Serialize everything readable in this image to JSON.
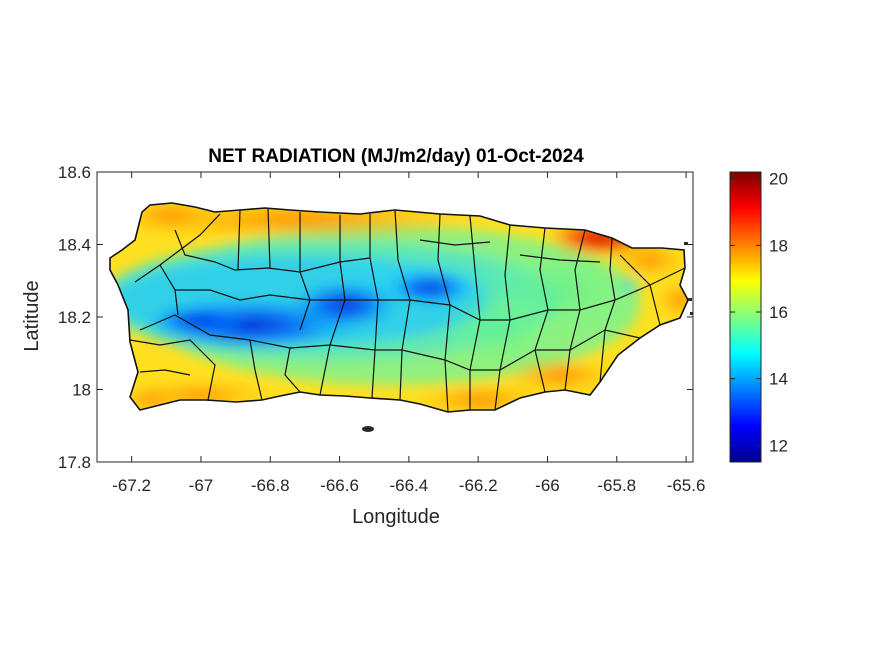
{
  "figure": {
    "title": "NET RADIATION (MJ/m2/day) 01-Oct-2024",
    "xlabel": "Longitude",
    "ylabel": "Latitude"
  },
  "chart_data": {
    "type": "heatmap",
    "title": "NET RADIATION (MJ/m2/day) 01-Oct-2024",
    "xlabel": "Longitude",
    "ylabel": "Latitude",
    "xlim": [
      -67.3,
      -65.58
    ],
    "ylim": [
      17.8,
      18.6
    ],
    "xticks": [
      -67.2,
      -67,
      -66.8,
      -66.6,
      -66.4,
      -66.2,
      -66,
      -65.8,
      -65.6
    ],
    "xtick_labels": [
      "-67.2",
      "-67",
      "-66.8",
      "-66.6",
      "-66.4",
      "-66.2",
      "-66",
      "-65.8",
      "-65.6"
    ],
    "yticks": [
      17.8,
      18,
      18.2,
      18.4,
      18.6
    ],
    "ytick_labels": [
      "17.8",
      "18",
      "18.2",
      "18.4",
      "18.6"
    ],
    "colormap": "jet",
    "colorbar": {
      "range": [
        11.5,
        20.2
      ],
      "ticks": [
        12,
        14,
        16,
        18,
        20
      ],
      "tick_labels": [
        "12",
        "14",
        "16",
        "18",
        "20"
      ]
    },
    "grid": false
  }
}
